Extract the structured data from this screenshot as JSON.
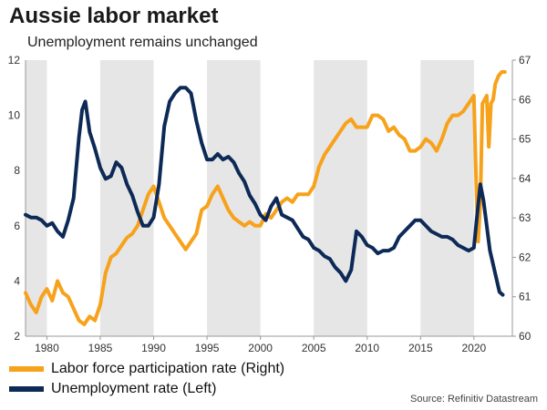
{
  "header": {
    "title": "Aussie labor market",
    "subtitle": "Unemployment remains unchanged"
  },
  "colors": {
    "participation": "#F7A21B",
    "unemployment": "#0D2A57",
    "shade": "#E6E6E6"
  },
  "legend": {
    "participation_label": "Labor force participation rate (Right)",
    "unemployment_label": "Unemployment rate (Left)"
  },
  "source": "Source: Refinitiv Datastream",
  "chart_data": {
    "type": "line",
    "title": "Aussie labor market",
    "subtitle": "Unemployment remains unchanged",
    "x_range": [
      1978,
      2023.6
    ],
    "x_ticks": [
      1980,
      1985,
      1990,
      1995,
      2000,
      2005,
      2010,
      2015,
      2020
    ],
    "y_left": {
      "range": [
        2,
        12
      ],
      "ticks": [
        2,
        4,
        6,
        8,
        10,
        12
      ]
    },
    "y_right": {
      "range": [
        60,
        67
      ],
      "ticks": [
        60,
        61,
        62,
        63,
        64,
        65,
        66,
        67
      ]
    },
    "shaded_periods": [
      [
        1978,
        1980
      ],
      [
        1985,
        1990
      ],
      [
        1995,
        2000
      ],
      [
        2005,
        2010
      ],
      [
        2015,
        2020
      ]
    ],
    "series": [
      {
        "name": "Labor force participation rate (Right)",
        "axis": "right",
        "x": [
          1978,
          1978.5,
          1979,
          1979.5,
          1980,
          1980.5,
          1981,
          1981.5,
          1982,
          1982.5,
          1983,
          1983.5,
          1984,
          1984.5,
          1985,
          1985.5,
          1986,
          1986.5,
          1987,
          1987.5,
          1988,
          1988.5,
          1989,
          1989.5,
          1990,
          1990.5,
          1991,
          1991.5,
          1992,
          1992.5,
          1993,
          1993.5,
          1994,
          1994.5,
          1995,
          1995.5,
          1996,
          1996.5,
          1997,
          1997.5,
          1998,
          1998.5,
          1999,
          1999.5,
          2000,
          2000.5,
          2001,
          2001.5,
          2002,
          2002.5,
          2003,
          2003.5,
          2004,
          2004.5,
          2005,
          2005.5,
          2006,
          2006.5,
          2007,
          2007.5,
          2008,
          2008.5,
          2009,
          2009.5,
          2010,
          2010.5,
          2011,
          2011.5,
          2012,
          2012.5,
          2013,
          2013.5,
          2014,
          2014.5,
          2015,
          2015.5,
          2016,
          2016.5,
          2017,
          2017.5,
          2018,
          2018.5,
          2019,
          2019.5,
          2020,
          2020.2,
          2020.4,
          2020.6,
          2020.8,
          2021,
          2021.2,
          2021.4,
          2021.6,
          2021.8,
          2022,
          2022.3,
          2022.6,
          2022.9
        ],
        "values": [
          61.1,
          60.8,
          60.6,
          61.0,
          61.2,
          60.9,
          61.4,
          61.1,
          61.0,
          60.7,
          60.4,
          60.3,
          60.5,
          60.4,
          60.8,
          61.6,
          62.0,
          62.1,
          62.3,
          62.5,
          62.6,
          62.8,
          63.2,
          63.6,
          63.8,
          63.4,
          63.0,
          62.8,
          62.6,
          62.4,
          62.2,
          62.4,
          62.6,
          63.2,
          63.3,
          63.6,
          63.8,
          63.5,
          63.2,
          63.0,
          62.9,
          62.8,
          62.9,
          62.8,
          62.8,
          63.1,
          63.0,
          63.2,
          63.4,
          63.5,
          63.4,
          63.6,
          63.6,
          63.6,
          63.8,
          64.3,
          64.6,
          64.8,
          65.0,
          65.2,
          65.4,
          65.5,
          65.3,
          65.3,
          65.3,
          65.6,
          65.6,
          65.5,
          65.2,
          65.3,
          65.1,
          65.0,
          64.7,
          64.7,
          64.8,
          65.0,
          64.9,
          64.7,
          65.0,
          65.4,
          65.6,
          65.6,
          65.7,
          65.9,
          66.1,
          64.0,
          62.4,
          63.4,
          65.9,
          66.0,
          66.1,
          64.8,
          65.9,
          66.0,
          66.4,
          66.6,
          66.7,
          66.7
        ]
      },
      {
        "name": "Unemployment rate (Left)",
        "axis": "left",
        "x": [
          1978,
          1978.5,
          1979,
          1979.5,
          1980,
          1980.5,
          1981,
          1981.5,
          1982,
          1982.5,
          1983,
          1983.3,
          1983.6,
          1984,
          1984.5,
          1985,
          1985.5,
          1986,
          1986.5,
          1987,
          1987.5,
          1988,
          1988.5,
          1989,
          1989.5,
          1990,
          1990.5,
          1991,
          1991.5,
          1992,
          1992.5,
          1993,
          1993.5,
          1994,
          1994.5,
          1995,
          1995.5,
          1996,
          1996.5,
          1997,
          1997.5,
          1998,
          1998.5,
          1999,
          1999.5,
          2000,
          2000.5,
          2001,
          2001.5,
          2002,
          2002.5,
          2003,
          2003.5,
          2004,
          2004.5,
          2005,
          2005.5,
          2006,
          2006.5,
          2007,
          2007.5,
          2008,
          2008.5,
          2009,
          2009.5,
          2010,
          2010.5,
          2011,
          2011.5,
          2012,
          2012.5,
          2013,
          2013.5,
          2014,
          2014.5,
          2015,
          2015.5,
          2016,
          2016.5,
          2017,
          2017.5,
          2018,
          2018.5,
          2019,
          2019.5,
          2020,
          2020.3,
          2020.6,
          2020.9,
          2021.2,
          2021.5,
          2021.8,
          2022.1,
          2022.4,
          2022.7
        ],
        "values": [
          6.4,
          6.3,
          6.3,
          6.2,
          6.0,
          6.1,
          5.8,
          5.6,
          6.2,
          7.0,
          9.2,
          10.2,
          10.5,
          9.4,
          8.8,
          8.1,
          7.7,
          7.8,
          8.3,
          8.1,
          7.5,
          7.1,
          6.5,
          6.0,
          6.0,
          6.3,
          7.5,
          9.6,
          10.5,
          10.8,
          11.0,
          11.0,
          10.8,
          9.8,
          9.0,
          8.4,
          8.4,
          8.6,
          8.4,
          8.5,
          8.3,
          7.9,
          7.6,
          7.1,
          6.8,
          6.4,
          6.2,
          6.7,
          7.0,
          6.4,
          6.3,
          6.2,
          5.9,
          5.6,
          5.5,
          5.2,
          5.1,
          4.9,
          4.8,
          4.5,
          4.3,
          4.0,
          4.4,
          5.8,
          5.6,
          5.3,
          5.2,
          5.0,
          5.1,
          5.1,
          5.2,
          5.6,
          5.8,
          6.0,
          6.2,
          6.2,
          6.0,
          5.8,
          5.7,
          5.6,
          5.6,
          5.5,
          5.3,
          5.2,
          5.1,
          5.2,
          6.4,
          7.5,
          6.9,
          6.0,
          5.1,
          4.6,
          4.1,
          3.6,
          3.5
        ]
      }
    ]
  }
}
